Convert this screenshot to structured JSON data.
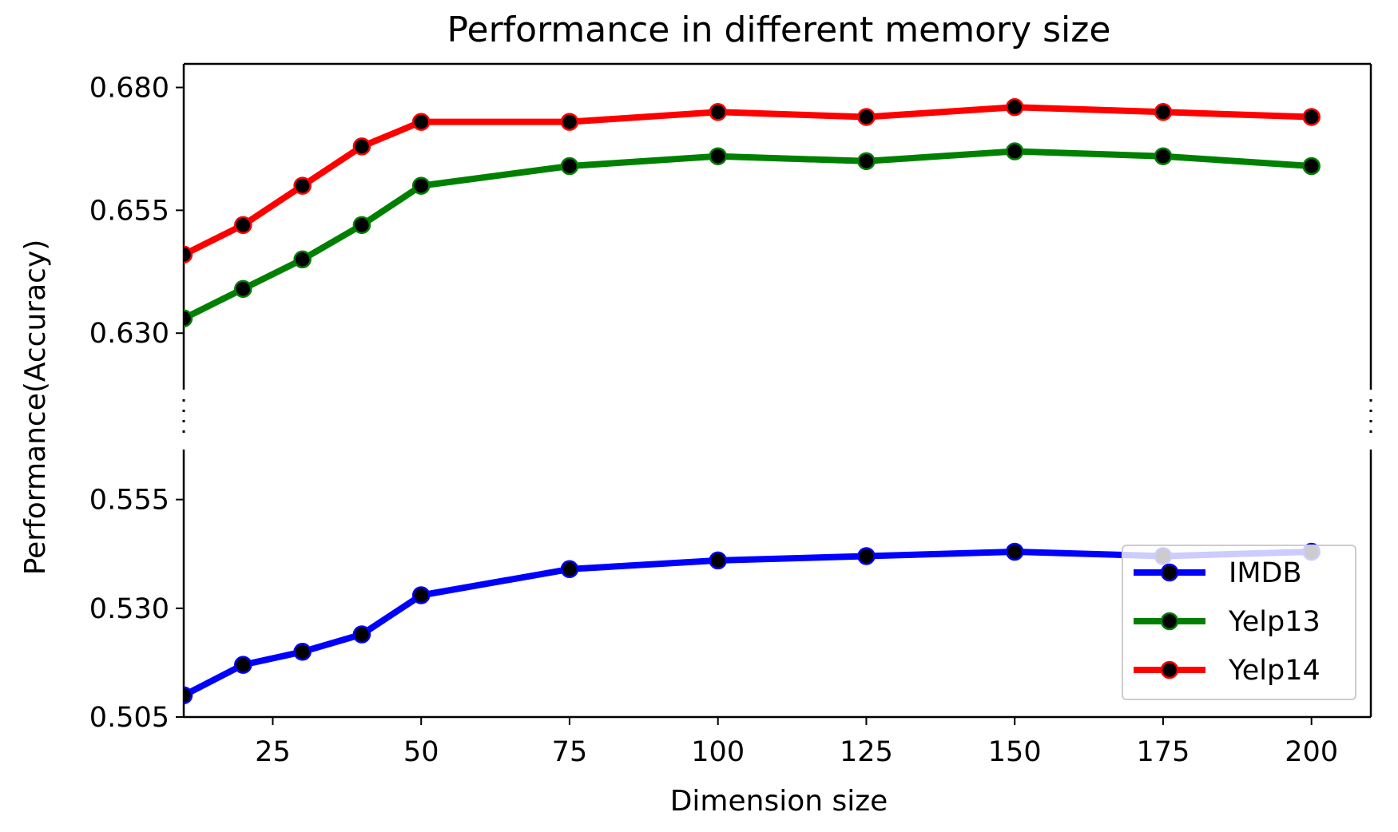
{
  "chart_data": {
    "type": "line",
    "title": "Performance in different memory size",
    "xlabel": "Dimension size",
    "ylabel": "Performance(Accuracy)",
    "xlim": [
      10,
      210
    ],
    "x": [
      10,
      20,
      30,
      40,
      50,
      75,
      100,
      125,
      150,
      175,
      200
    ],
    "x_ticks": [
      25,
      50,
      75,
      100,
      125,
      150,
      175,
      200
    ],
    "broken_y_axis": true,
    "upper_ylim": [
      0.6185,
      0.6848
    ],
    "upper_yticks": [
      0.63,
      0.655,
      0.68
    ],
    "lower_ylim": [
      0.505,
      0.5665
    ],
    "lower_yticks": [
      0.505,
      0.53,
      0.555
    ],
    "series": [
      {
        "name": "IMDB",
        "color": "#0000ff",
        "axis": "lower",
        "values": [
          0.51,
          0.517,
          0.52,
          0.524,
          0.533,
          0.539,
          0.541,
          0.542,
          0.543,
          0.542,
          0.543
        ]
      },
      {
        "name": "Yelp13",
        "color": "#008000",
        "axis": "upper",
        "values": [
          0.633,
          0.639,
          0.645,
          0.652,
          0.66,
          0.664,
          0.666,
          0.665,
          0.667,
          0.666,
          0.664
        ]
      },
      {
        "name": "Yelp14",
        "color": "#ff0000",
        "axis": "upper",
        "values": [
          0.646,
          0.652,
          0.66,
          0.668,
          0.673,
          0.673,
          0.675,
          0.674,
          0.676,
          0.675,
          0.674
        ]
      }
    ],
    "legend": {
      "position": "lower-right",
      "entries": [
        "IMDB",
        "Yelp13",
        "Yelp14"
      ]
    },
    "marker_color": "#000000",
    "grid": false
  }
}
